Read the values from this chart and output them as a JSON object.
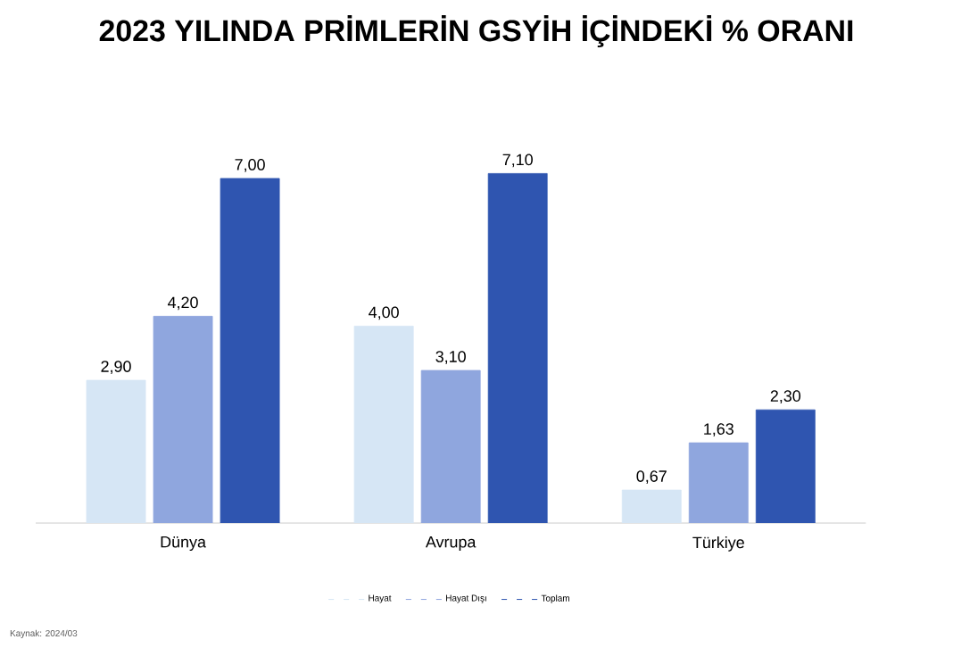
{
  "chart_data": {
    "type": "bar",
    "title": "2023 YILINDA PRİMLERİN GSYİH İÇİNDEKİ % ORANI",
    "categories": [
      "Dünya",
      "Avrupa",
      "Türkiye"
    ],
    "series": [
      {
        "name": "Hayat",
        "color": "#d6e6f5",
        "values": [
          2.9,
          4.0,
          0.67
        ],
        "value_labels": [
          "2,90",
          "4,00",
          "0,67"
        ]
      },
      {
        "name": "Hayat Dışı",
        "color": "#8fa6de",
        "values": [
          4.2,
          3.1,
          1.63
        ],
        "value_labels": [
          "4,20",
          "3,10",
          "1,63"
        ]
      },
      {
        "name": "Toplam",
        "color": "#2f55b0",
        "values": [
          7.0,
          7.1,
          2.3
        ],
        "value_labels": [
          "7,00",
          "7,10",
          "2,30"
        ]
      }
    ],
    "legend": "bottom",
    "annotations": [
      "Kaynak: 2024/03"
    ]
  }
}
